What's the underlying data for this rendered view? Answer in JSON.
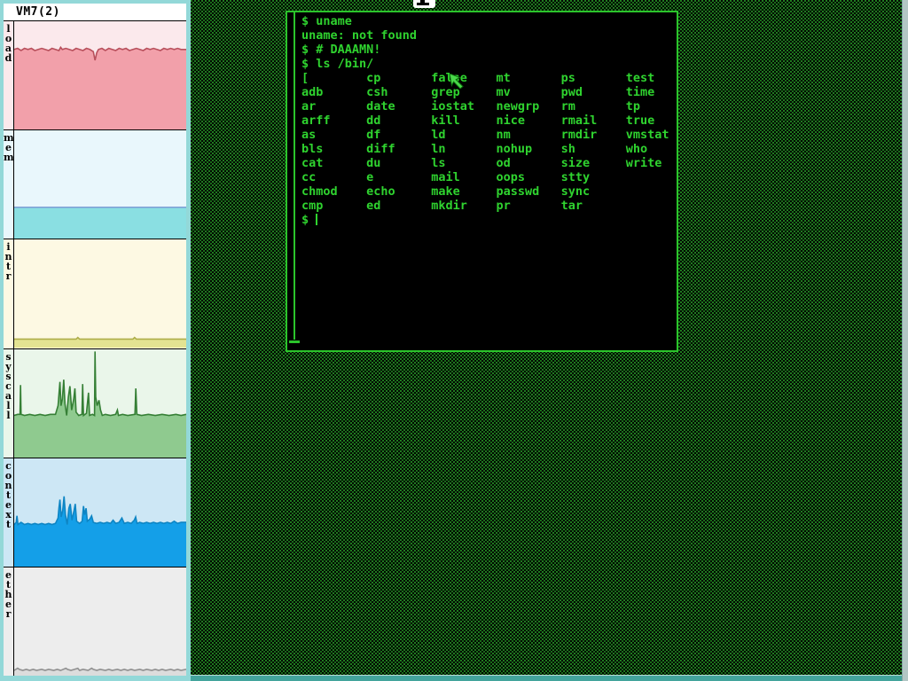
{
  "monitor": {
    "title": "VM7(2)",
    "strips": [
      {
        "label": "load",
        "bg": "#fbe9ec",
        "fill": "#f2a0aa",
        "line": "#b8505c",
        "points": [
          [
            0,
            26
          ],
          [
            2,
            25
          ],
          [
            4,
            27
          ],
          [
            6,
            25
          ],
          [
            8,
            26
          ],
          [
            10,
            25
          ],
          [
            12,
            27
          ],
          [
            14,
            26
          ],
          [
            16,
            25
          ],
          [
            18,
            26
          ],
          [
            20,
            27
          ],
          [
            22,
            25
          ],
          [
            24,
            26
          ],
          [
            26,
            27
          ],
          [
            27,
            24
          ],
          [
            28,
            26
          ],
          [
            30,
            25
          ],
          [
            32,
            26
          ],
          [
            34,
            27
          ],
          [
            36,
            25
          ],
          [
            38,
            26
          ],
          [
            40,
            27
          ],
          [
            42,
            25
          ],
          [
            44,
            26
          ],
          [
            46,
            28
          ],
          [
            47,
            36
          ],
          [
            48,
            29
          ],
          [
            49,
            26
          ],
          [
            51,
            25
          ],
          [
            53,
            27
          ],
          [
            55,
            25
          ],
          [
            57,
            26
          ],
          [
            59,
            27
          ],
          [
            61,
            25
          ],
          [
            63,
            26
          ],
          [
            65,
            25
          ],
          [
            67,
            27
          ],
          [
            69,
            26
          ],
          [
            71,
            25
          ],
          [
            73,
            26
          ],
          [
            75,
            27
          ],
          [
            77,
            25
          ],
          [
            79,
            26
          ],
          [
            81,
            25
          ],
          [
            83,
            26
          ],
          [
            85,
            27
          ],
          [
            87,
            25
          ],
          [
            89,
            26
          ],
          [
            91,
            25
          ],
          [
            93,
            26
          ],
          [
            95,
            25
          ],
          [
            97,
            26
          ],
          [
            100,
            26
          ]
        ]
      },
      {
        "label": "mem",
        "bg": "#e9f7fc",
        "fill": "#8adfe2",
        "line": "#7e9ed6",
        "points": [
          [
            0,
            71
          ],
          [
            100,
            71
          ]
        ]
      },
      {
        "label": "intr",
        "bg": "#fdf9e3",
        "fill": "#e3e392",
        "line": "#aeae4a",
        "points": [
          [
            0,
            92
          ],
          [
            36,
            92
          ],
          [
            37,
            90.5
          ],
          [
            38,
            92
          ],
          [
            69,
            92
          ],
          [
            70,
            90.5
          ],
          [
            71,
            92
          ],
          [
            100,
            92
          ]
        ]
      },
      {
        "label": "syscall",
        "bg": "#eaf6ea",
        "fill": "#8fca8f",
        "line": "#357f35",
        "points": [
          [
            0,
            61
          ],
          [
            2,
            60
          ],
          [
            3.4,
            60
          ],
          [
            3.7,
            33
          ],
          [
            4,
            60
          ],
          [
            6,
            61
          ],
          [
            9,
            60
          ],
          [
            12,
            61
          ],
          [
            15,
            60
          ],
          [
            18,
            61
          ],
          [
            21,
            60
          ],
          [
            24,
            60
          ],
          [
            25.5,
            52
          ],
          [
            26,
            42
          ],
          [
            26.6,
            30
          ],
          [
            27.2,
            52
          ],
          [
            28,
            46
          ],
          [
            28.8,
            28
          ],
          [
            29.5,
            50
          ],
          [
            30.5,
            61
          ],
          [
            31.5,
            44
          ],
          [
            32.4,
            34
          ],
          [
            33.4,
            56
          ],
          [
            34.6,
            46
          ],
          [
            35.3,
            36
          ],
          [
            36,
            58
          ],
          [
            37.5,
            61
          ],
          [
            39.4,
            60
          ],
          [
            39.8,
            32
          ],
          [
            40.3,
            61
          ],
          [
            42,
            59
          ],
          [
            43.2,
            40
          ],
          [
            43.8,
            61
          ],
          [
            45.5,
            60
          ],
          [
            46.7,
            61
          ],
          [
            47,
            2
          ],
          [
            47.4,
            44
          ],
          [
            48.2,
            52
          ],
          [
            49.3,
            47
          ],
          [
            50.2,
            56
          ],
          [
            51.2,
            61
          ],
          [
            53,
            60
          ],
          [
            56,
            61
          ],
          [
            59,
            60
          ],
          [
            60,
            56
          ],
          [
            60.6,
            61
          ],
          [
            63,
            60
          ],
          [
            66,
            61
          ],
          [
            70.2,
            60
          ],
          [
            70.7,
            36
          ],
          [
            71.3,
            60
          ],
          [
            74,
            61
          ],
          [
            78,
            60
          ],
          [
            82,
            61
          ],
          [
            86,
            60
          ],
          [
            90,
            61
          ],
          [
            94,
            60
          ],
          [
            97,
            61
          ],
          [
            100,
            60
          ]
        ]
      },
      {
        "label": "context",
        "bg": "#cde7f5",
        "fill": "#149fe8",
        "line": "#0e85c4",
        "points": [
          [
            0,
            61
          ],
          [
            1.2,
            59
          ],
          [
            1.6,
            53
          ],
          [
            2.2,
            61
          ],
          [
            4,
            59
          ],
          [
            6,
            61
          ],
          [
            8,
            60
          ],
          [
            10,
            61
          ],
          [
            12,
            60
          ],
          [
            14,
            61
          ],
          [
            16,
            60
          ],
          [
            18,
            61
          ],
          [
            20,
            60
          ],
          [
            22,
            61
          ],
          [
            24,
            60
          ],
          [
            25.5,
            55
          ],
          [
            26,
            46
          ],
          [
            26.6,
            38
          ],
          [
            27.3,
            54
          ],
          [
            28.2,
            48
          ],
          [
            29,
            35
          ],
          [
            29.8,
            52
          ],
          [
            30.8,
            61
          ],
          [
            31.8,
            46
          ],
          [
            32.6,
            42
          ],
          [
            33.6,
            57
          ],
          [
            34.8,
            48
          ],
          [
            35.5,
            42
          ],
          [
            36.3,
            58
          ],
          [
            38,
            60
          ],
          [
            39.5,
            58
          ],
          [
            40.3,
            44
          ],
          [
            41,
            52
          ],
          [
            41.8,
            46
          ],
          [
            42.5,
            58
          ],
          [
            44,
            56
          ],
          [
            45,
            53
          ],
          [
            46,
            59
          ],
          [
            48,
            60
          ],
          [
            50,
            59
          ],
          [
            52,
            60
          ],
          [
            54,
            59
          ],
          [
            56,
            60
          ],
          [
            57.5,
            57
          ],
          [
            59,
            60
          ],
          [
            61,
            59
          ],
          [
            62.6,
            55
          ],
          [
            64,
            60
          ],
          [
            66,
            59
          ],
          [
            68,
            60
          ],
          [
            69.8,
            57
          ],
          [
            70.6,
            54
          ],
          [
            71.4,
            60
          ],
          [
            73,
            59
          ],
          [
            75,
            60
          ],
          [
            77,
            59
          ],
          [
            79,
            60
          ],
          [
            81,
            59
          ],
          [
            83,
            60
          ],
          [
            85,
            59
          ],
          [
            87,
            60
          ],
          [
            89,
            59
          ],
          [
            91,
            60
          ],
          [
            93,
            58
          ],
          [
            95,
            60
          ],
          [
            97,
            59
          ],
          [
            100,
            59
          ]
        ]
      },
      {
        "label": "ether",
        "bg": "#ededed",
        "fill": "#dcdcdc",
        "line": "#909090",
        "points": [
          [
            0,
            95
          ],
          [
            2,
            93
          ],
          [
            3,
            94
          ],
          [
            5,
            95
          ],
          [
            7,
            94
          ],
          [
            9,
            95
          ],
          [
            11,
            94
          ],
          [
            13,
            95
          ],
          [
            16,
            94
          ],
          [
            18,
            95
          ],
          [
            20,
            94
          ],
          [
            23,
            95
          ],
          [
            25,
            94
          ],
          [
            27,
            95
          ],
          [
            30,
            93
          ],
          [
            31,
            94
          ],
          [
            33,
            95
          ],
          [
            35,
            94
          ],
          [
            37,
            93
          ],
          [
            38,
            95
          ],
          [
            40,
            94
          ],
          [
            43,
            95
          ],
          [
            45,
            93
          ],
          [
            46,
            94
          ],
          [
            48,
            95
          ],
          [
            50,
            94
          ],
          [
            53,
            95
          ],
          [
            55,
            94
          ],
          [
            57,
            95
          ],
          [
            60,
            94
          ],
          [
            62,
            95
          ],
          [
            64,
            94
          ],
          [
            66,
            95
          ],
          [
            68,
            94
          ],
          [
            70,
            95
          ],
          [
            73,
            94
          ],
          [
            75,
            95
          ],
          [
            77,
            94
          ],
          [
            80,
            95
          ],
          [
            82,
            94
          ],
          [
            84,
            95
          ],
          [
            86,
            94
          ],
          [
            88,
            95
          ],
          [
            91,
            94
          ],
          [
            93,
            95
          ],
          [
            95,
            94
          ],
          [
            97,
            95
          ],
          [
            100,
            94
          ]
        ]
      }
    ]
  },
  "terminal": {
    "border_color": "#2bc42b",
    "text_color": "#2fd32f",
    "lines": [
      "$ uname",
      "uname: not found",
      "$ # DAAAMN!",
      "$ ls /bin/",
      "[        cp       false    mt       ps       test",
      "adb      csh      grep     mv       pwd      time",
      "ar       date     iostat   newgrp   rm       tp",
      "arff     dd       kill     nice     rmail    true",
      "as       df       ld       nm       rmdir    vmstat",
      "bls      diff     ln       nohup    sh       who",
      "cat      du       ls       od       size     write",
      "cc       e        mail     oops     stty",
      "chmod    echo     make     passwd   sync",
      "cmp      ed       mkdir    pr       tar"
    ],
    "prompt": "$ "
  },
  "desktop": {
    "dot_color": "#2aa02a",
    "base_color": "#000900",
    "bottom_edge_color": "#43a49c",
    "right_edge_color": "#b2c6c4"
  },
  "mouse_cursor": {
    "color": "#4ad84a"
  }
}
